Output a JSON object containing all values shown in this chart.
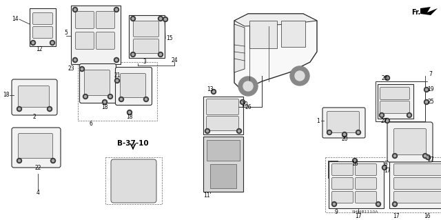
{
  "background_color": "#ffffff",
  "diagram_code": "SHJ4B1110A",
  "figsize": [
    6.4,
    3.19
  ],
  "dpi": 100,
  "line_color": "#2a2a2a",
  "fill_color": "#f2f2f2",
  "fill_dark": "#c8c8c8",
  "screw_color": "#3a3a3a",
  "label_fontsize": 5.5,
  "bold_fontsize": 7.0
}
